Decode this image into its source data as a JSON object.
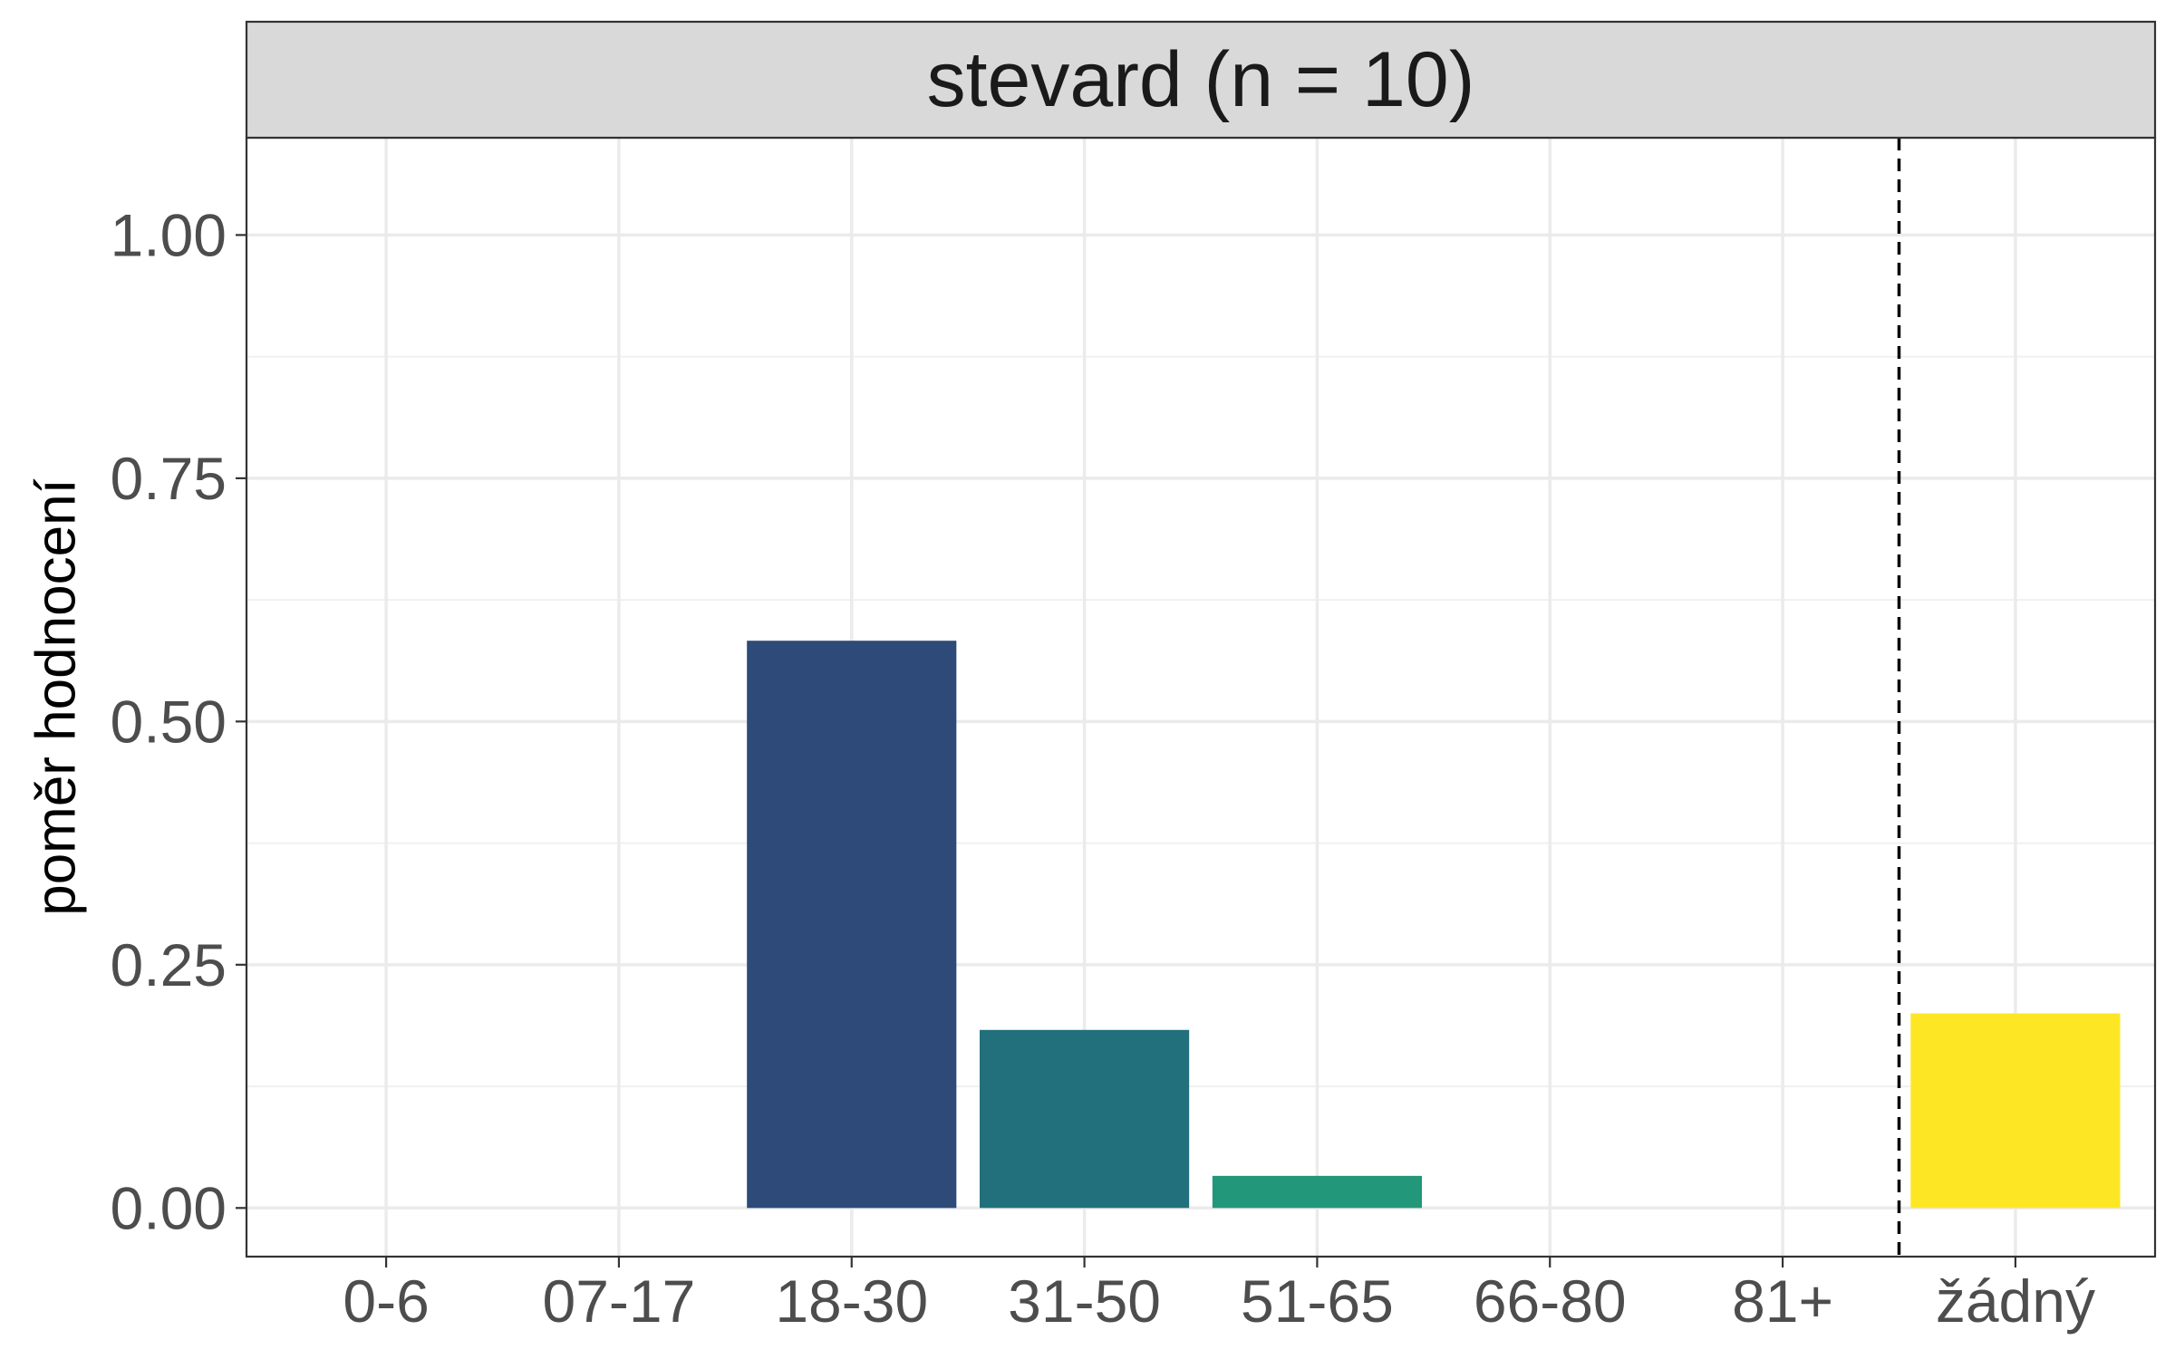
{
  "chart_data": {
    "type": "bar",
    "facet_title": "stevard (n = 10)",
    "ylabel": "poměr hodnocení",
    "xlabel": "",
    "categories": [
      "0-6",
      "07-17",
      "18-30",
      "31-50",
      "51-65",
      "66-80",
      "81+",
      "žádný"
    ],
    "values": [
      0,
      0,
      0.583,
      0.183,
      0.033,
      0,
      0,
      0.2
    ],
    "bar_colors": [
      "#440154",
      "#46327e",
      "#2d4a78",
      "#21707b",
      "#22977a",
      "#5ec962",
      "#b8de29",
      "#fde725"
    ],
    "ylim": [
      -0.05,
      1.1
    ],
    "yticks": [
      0,
      0.25,
      0.5,
      0.75,
      1
    ],
    "ytick_labels": [
      "0.00",
      "0.25",
      "0.50",
      "0.75",
      "1.00"
    ],
    "reference_line_between": [
      "81+",
      "žádný"
    ],
    "reference_line_style": "dashed",
    "grid": true,
    "theme": "bw"
  }
}
